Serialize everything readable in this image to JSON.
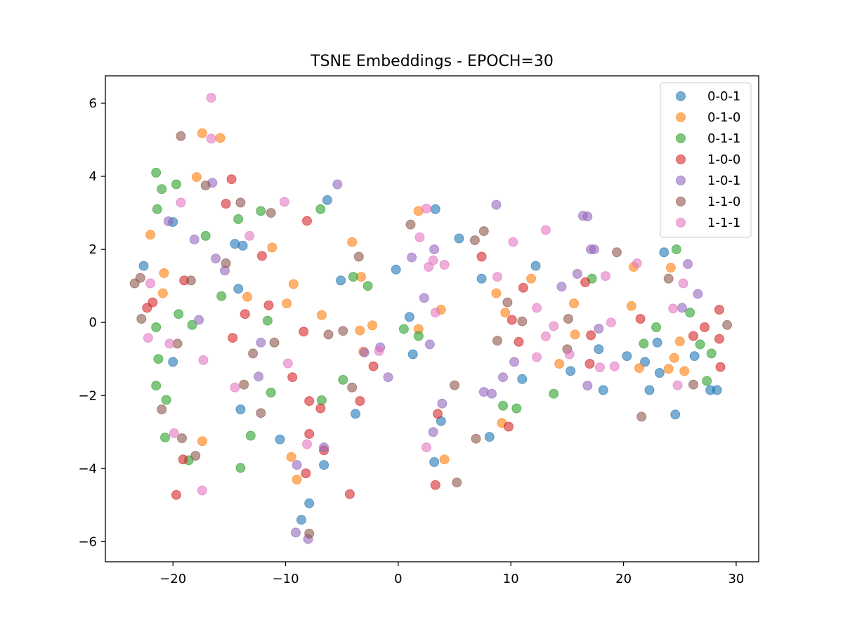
{
  "chart_data": {
    "type": "scatter",
    "title": "TSNE Embeddings - EPOCH=30",
    "xlabel": "",
    "ylabel": "",
    "xlim": [
      -26,
      32
    ],
    "ylim": [
      -6.55,
      6.75
    ],
    "x_ticks": [
      -20,
      -10,
      0,
      10,
      20,
      30
    ],
    "y_ticks": [
      -6,
      -4,
      -2,
      0,
      2,
      4,
      6
    ],
    "x_tick_labels": [
      "−20",
      "−10",
      "0",
      "10",
      "20",
      "30"
    ],
    "y_tick_labels": [
      "−6",
      "−4",
      "−2",
      "0",
      "2",
      "4",
      "6"
    ],
    "grid": false,
    "legend_position": "top-right",
    "marker_alpha": 0.6,
    "series": [
      {
        "name": "0-0-1",
        "color": "#1f77b4",
        "points": [
          [
            -22.6,
            1.55
          ],
          [
            -20.0,
            2.75
          ],
          [
            -20.0,
            -1.08
          ],
          [
            -14.5,
            2.15
          ],
          [
            -13.8,
            2.1
          ],
          [
            -14.2,
            0.92
          ],
          [
            -14.0,
            -2.38
          ],
          [
            -10.5,
            -3.2
          ],
          [
            -6.3,
            3.35
          ],
          [
            -5.1,
            1.15
          ],
          [
            -3.8,
            -2.5
          ],
          [
            -0.2,
            1.45
          ],
          [
            1.0,
            0.15
          ],
          [
            1.3,
            -0.87
          ],
          [
            3.3,
            3.1
          ],
          [
            3.2,
            -3.82
          ],
          [
            3.8,
            -2.7
          ],
          [
            5.4,
            2.3
          ],
          [
            7.4,
            1.2
          ],
          [
            8.1,
            -3.13
          ],
          [
            11.0,
            -1.55
          ],
          [
            12.2,
            1.55
          ],
          [
            15.3,
            -1.33
          ],
          [
            17.8,
            -0.73
          ],
          [
            18.2,
            -1.85
          ],
          [
            20.3,
            -0.92
          ],
          [
            21.9,
            -1.08
          ],
          [
            22.3,
            -1.85
          ],
          [
            23.0,
            -0.55
          ],
          [
            23.2,
            -1.38
          ],
          [
            23.6,
            1.92
          ],
          [
            24.6,
            -2.52
          ],
          [
            26.3,
            -0.92
          ],
          [
            27.7,
            -1.85
          ],
          [
            28.3,
            -1.85
          ],
          [
            -7.9,
            -4.95
          ],
          [
            -8.6,
            -5.4
          ],
          [
            -6.6,
            -3.9
          ]
        ]
      },
      {
        "name": "0-1-0",
        "color": "#ff7f0e",
        "points": [
          [
            -22.0,
            2.4
          ],
          [
            -20.8,
            1.35
          ],
          [
            -20.9,
            0.8
          ],
          [
            -17.4,
            5.18
          ],
          [
            -15.8,
            5.05
          ],
          [
            -17.9,
            3.98
          ],
          [
            -17.4,
            -3.25
          ],
          [
            -13.4,
            0.7
          ],
          [
            -11.2,
            2.05
          ],
          [
            -9.9,
            0.52
          ],
          [
            -9.3,
            1.05
          ],
          [
            -9.5,
            -3.68
          ],
          [
            -9.0,
            -4.3
          ],
          [
            -6.8,
            0.2
          ],
          [
            -4.1,
            2.2
          ],
          [
            -3.3,
            1.25
          ],
          [
            -3.4,
            -0.22
          ],
          [
            -3.1,
            -0.8
          ],
          [
            -2.3,
            -0.08
          ],
          [
            1.8,
            3.05
          ],
          [
            1.8,
            -0.18
          ],
          [
            3.8,
            0.35
          ],
          [
            4.1,
            -3.75
          ],
          [
            8.7,
            0.8
          ],
          [
            9.2,
            -2.75
          ],
          [
            9.5,
            0.27
          ],
          [
            11.8,
            1.2
          ],
          [
            14.3,
            -1.13
          ],
          [
            15.6,
            0.52
          ],
          [
            15.7,
            -0.33
          ],
          [
            20.7,
            0.45
          ],
          [
            20.9,
            1.52
          ],
          [
            21.4,
            -1.25
          ],
          [
            24.0,
            -1.27
          ],
          [
            24.2,
            1.5
          ],
          [
            24.5,
            -0.97
          ],
          [
            25.0,
            -0.52
          ],
          [
            25.4,
            -1.33
          ]
        ]
      },
      {
        "name": "0-1-1",
        "color": "#2ca02c",
        "points": [
          [
            -21.5,
            4.1
          ],
          [
            -21.0,
            3.65
          ],
          [
            -21.4,
            3.1
          ],
          [
            -19.7,
            3.78
          ],
          [
            -17.1,
            2.37
          ],
          [
            -14.2,
            2.83
          ],
          [
            -12.2,
            3.05
          ],
          [
            -15.7,
            0.72
          ],
          [
            -19.5,
            0.23
          ],
          [
            -18.3,
            -0.07
          ],
          [
            -21.5,
            -0.13
          ],
          [
            -21.3,
            -1.0
          ],
          [
            -21.5,
            -1.73
          ],
          [
            -20.6,
            -2.12
          ],
          [
            -20.7,
            -3.15
          ],
          [
            -18.6,
            -3.77
          ],
          [
            -13.1,
            -3.1
          ],
          [
            -14.0,
            -3.98
          ],
          [
            -11.6,
            0.05
          ],
          [
            -11.3,
            -1.92
          ],
          [
            -6.9,
            3.1
          ],
          [
            -6.8,
            -2.13
          ],
          [
            -4.9,
            -1.57
          ],
          [
            -4.0,
            1.25
          ],
          [
            -2.7,
            1.0
          ],
          [
            0.5,
            -0.18
          ],
          [
            1.8,
            -0.37
          ],
          [
            9.3,
            -2.28
          ],
          [
            10.5,
            -2.35
          ],
          [
            13.8,
            -1.95
          ],
          [
            17.2,
            1.2
          ],
          [
            21.8,
            -0.58
          ],
          [
            22.9,
            -0.13
          ],
          [
            24.7,
            2.0
          ],
          [
            25.9,
            0.27
          ],
          [
            26.8,
            -0.6
          ],
          [
            27.4,
            -1.6
          ],
          [
            27.8,
            -0.85
          ]
        ]
      },
      {
        "name": "1-0-0",
        "color": "#d62728",
        "points": [
          [
            -22.3,
            0.4
          ],
          [
            -21.8,
            0.55
          ],
          [
            -19.0,
            1.15
          ],
          [
            -19.1,
            -3.75
          ],
          [
            -19.7,
            -4.72
          ],
          [
            -15.3,
            3.25
          ],
          [
            -14.8,
            3.92
          ],
          [
            -14.7,
            -0.42
          ],
          [
            -13.6,
            0.23
          ],
          [
            -12.1,
            1.82
          ],
          [
            -11.5,
            0.47
          ],
          [
            -9.4,
            -1.5
          ],
          [
            -8.1,
            2.78
          ],
          [
            -8.4,
            -0.25
          ],
          [
            -7.9,
            -2.15
          ],
          [
            -7.9,
            -3.05
          ],
          [
            -8.2,
            -4.13
          ],
          [
            -6.9,
            -2.35
          ],
          [
            -6.6,
            -3.5
          ],
          [
            -4.3,
            -4.7
          ],
          [
            -3.4,
            -2.15
          ],
          [
            -2.2,
            -1.2
          ],
          [
            3.5,
            -2.5
          ],
          [
            3.3,
            -4.45
          ],
          [
            7.4,
            1.8
          ],
          [
            9.8,
            -2.85
          ],
          [
            10.1,
            0.07
          ],
          [
            10.7,
            -0.53
          ],
          [
            11.1,
            0.95
          ],
          [
            16.6,
            1.1
          ],
          [
            17.0,
            -1.13
          ],
          [
            17.1,
            -0.35
          ],
          [
            21.5,
            0.1
          ],
          [
            26.2,
            -0.37
          ],
          [
            27.2,
            -0.13
          ],
          [
            28.5,
            0.35
          ],
          [
            28.5,
            -0.45
          ],
          [
            28.6,
            -1.22
          ]
        ]
      },
      {
        "name": "1-0-1",
        "color": "#9467bd",
        "points": [
          [
            -20.4,
            2.77
          ],
          [
            -18.1,
            2.27
          ],
          [
            -16.5,
            3.82
          ],
          [
            -16.2,
            1.75
          ],
          [
            -15.4,
            1.42
          ],
          [
            -17.7,
            0.07
          ],
          [
            -12.2,
            -0.55
          ],
          [
            -12.4,
            -1.48
          ],
          [
            -9.0,
            -3.9
          ],
          [
            -9.1,
            -5.75
          ],
          [
            -8.0,
            -5.93
          ],
          [
            -6.6,
            -3.42
          ],
          [
            -5.4,
            3.78
          ],
          [
            -3.0,
            -0.82
          ],
          [
            -1.6,
            -0.68
          ],
          [
            -0.9,
            -1.5
          ],
          [
            1.2,
            1.78
          ],
          [
            2.3,
            0.67
          ],
          [
            2.8,
            -0.6
          ],
          [
            3.2,
            2.0
          ],
          [
            3.1,
            -3.0
          ],
          [
            3.9,
            -2.22
          ],
          [
            7.6,
            -1.9
          ],
          [
            8.3,
            -1.95
          ],
          [
            8.7,
            3.22
          ],
          [
            9.3,
            -1.5
          ],
          [
            10.3,
            -1.08
          ],
          [
            14.5,
            0.98
          ],
          [
            15.9,
            1.33
          ],
          [
            16.4,
            2.92
          ],
          [
            16.8,
            2.9
          ],
          [
            16.8,
            -1.73
          ],
          [
            17.1,
            2.0
          ],
          [
            17.4,
            2.0
          ],
          [
            17.8,
            -0.17
          ],
          [
            25.2,
            0.4
          ],
          [
            25.7,
            1.6
          ],
          [
            26.6,
            0.78
          ]
        ]
      },
      {
        "name": "1-1-0",
        "color": "#8c564b",
        "points": [
          [
            -23.4,
            1.07
          ],
          [
            -22.9,
            1.22
          ],
          [
            -22.8,
            0.1
          ],
          [
            -21.0,
            -2.38
          ],
          [
            -19.3,
            5.1
          ],
          [
            -19.6,
            -0.58
          ],
          [
            -19.2,
            -3.17
          ],
          [
            -18.4,
            1.15
          ],
          [
            -18.0,
            -3.65
          ],
          [
            -17.1,
            3.75
          ],
          [
            -15.3,
            1.62
          ],
          [
            -14.0,
            3.28
          ],
          [
            -13.7,
            -1.7
          ],
          [
            -12.9,
            -0.85
          ],
          [
            -12.2,
            -2.48
          ],
          [
            -11.3,
            3.0
          ],
          [
            -11.0,
            -0.55
          ],
          [
            -7.9,
            -5.78
          ],
          [
            -6.2,
            -0.33
          ],
          [
            -4.9,
            -0.23
          ],
          [
            -4.1,
            -1.78
          ],
          [
            -3.5,
            1.8
          ],
          [
            1.1,
            2.68
          ],
          [
            5.0,
            -1.72
          ],
          [
            5.2,
            -4.38
          ],
          [
            6.8,
            2.25
          ],
          [
            6.9,
            -3.18
          ],
          [
            7.6,
            2.5
          ],
          [
            8.8,
            -0.5
          ],
          [
            9.7,
            0.55
          ],
          [
            11.0,
            0.03
          ],
          [
            15.0,
            -0.73
          ],
          [
            15.1,
            0.1
          ],
          [
            19.4,
            1.92
          ],
          [
            21.6,
            -2.58
          ],
          [
            24.0,
            1.2
          ],
          [
            26.2,
            -1.7
          ],
          [
            29.2,
            -0.07
          ]
        ]
      },
      {
        "name": "1-1-1",
        "color": "#e377c2",
        "points": [
          [
            -16.6,
            6.15
          ],
          [
            -16.6,
            5.03
          ],
          [
            -19.3,
            3.28
          ],
          [
            -22.0,
            1.07
          ],
          [
            -22.2,
            -0.42
          ],
          [
            -20.3,
            -0.58
          ],
          [
            -19.9,
            -3.03
          ],
          [
            -17.3,
            -1.03
          ],
          [
            -17.4,
            -4.6
          ],
          [
            -14.5,
            -1.78
          ],
          [
            -13.2,
            2.37
          ],
          [
            -10.1,
            3.3
          ],
          [
            -9.8,
            -1.12
          ],
          [
            -8.1,
            -3.33
          ],
          [
            -1.7,
            -0.78
          ],
          [
            1.9,
            2.33
          ],
          [
            2.5,
            3.12
          ],
          [
            2.7,
            1.52
          ],
          [
            3.1,
            1.7
          ],
          [
            3.3,
            0.27
          ],
          [
            4.1,
            1.58
          ],
          [
            2.5,
            -3.42
          ],
          [
            8.8,
            1.25
          ],
          [
            10.2,
            2.2
          ],
          [
            12.3,
            0.4
          ],
          [
            12.3,
            -0.95
          ],
          [
            13.1,
            2.53
          ],
          [
            13.1,
            -0.38
          ],
          [
            13.8,
            -0.1
          ],
          [
            15.2,
            -0.87
          ],
          [
            17.9,
            -1.23
          ],
          [
            18.4,
            1.27
          ],
          [
            18.9,
            0.0
          ],
          [
            19.2,
            -1.2
          ],
          [
            21.2,
            1.62
          ],
          [
            24.4,
            0.38
          ],
          [
            24.8,
            -1.72
          ],
          [
            25.3,
            1.07
          ]
        ]
      }
    ]
  }
}
